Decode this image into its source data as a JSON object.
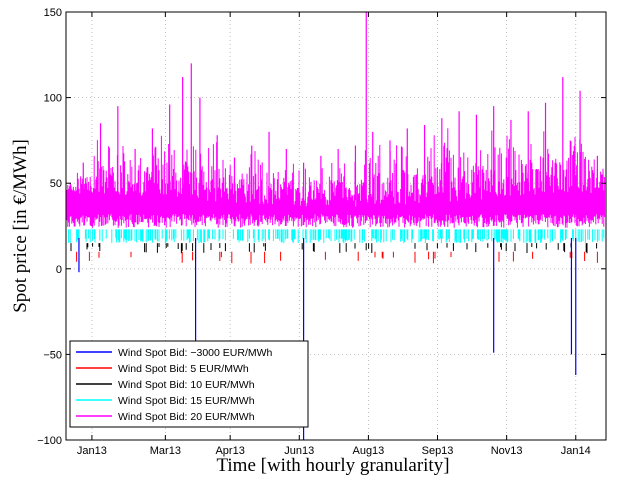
{
  "chart_data": {
    "type": "line",
    "title": "",
    "xlabel": "Time [with hourly granularity]",
    "ylabel": "Spot price [in €/MWh]",
    "xlim": [
      0,
      12.5
    ],
    "ylim": [
      -100,
      150
    ],
    "grid": true,
    "legend_position": "bottom-left",
    "x_tick_labels": [
      "Jan13",
      "Mar13",
      "Apr13",
      "Jun13",
      "Aug13",
      "Sep13",
      "Nov13",
      "Jan14"
    ],
    "x_tick_positions": [
      0.6,
      2.3,
      3.8,
      5.4,
      7.0,
      8.6,
      10.2,
      11.8
    ],
    "y_ticks": [
      -100,
      -50,
      0,
      50,
      100,
      150
    ],
    "series": [
      {
        "name": "Wind Spot Bid: −3000 EUR/MWh",
        "color": "#0000ff",
        "x": [
          0.3,
          3.0,
          5.5,
          9.9,
          11.7,
          11.8
        ],
        "y": [
          -2,
          -43,
          -100,
          -49,
          -50,
          -62
        ]
      },
      {
        "name": "Wind Spot Bid: 5 EUR/MWh",
        "color": "#ff0000",
        "x": [],
        "y": []
      },
      {
        "name": "Wind Spot Bid: 10 EUR/MWh",
        "color": "#000000",
        "x": [],
        "y": []
      },
      {
        "name": "Wind Spot Bid: 15 EUR/MWh",
        "color": "#00ffff",
        "x": [],
        "y": []
      },
      {
        "name": "Wind Spot Bid: 20 EUR/MWh",
        "color": "#ff00ff",
        "x": [
          0.1,
          0.4,
          0.8,
          1.2,
          1.6,
          2.0,
          2.4,
          2.7,
          2.9,
          3.1,
          3.5,
          3.9,
          4.3,
          4.7,
          5.1,
          5.5,
          5.9,
          6.3,
          6.7,
          6.95,
          7.1,
          7.5,
          7.9,
          8.3,
          8.7,
          9.1,
          9.5,
          9.9,
          10.3,
          10.7,
          11.1,
          11.5,
          11.9,
          12.3
        ],
        "y": [
          50,
          62,
          85,
          95,
          70,
          82,
          96,
          112,
          120,
          100,
          78,
          65,
          72,
          80,
          70,
          62,
          66,
          70,
          72,
          150,
          80,
          75,
          82,
          84,
          88,
          92,
          90,
          95,
          87,
          92,
          97,
          112,
          104,
          66
        ]
      }
    ]
  }
}
